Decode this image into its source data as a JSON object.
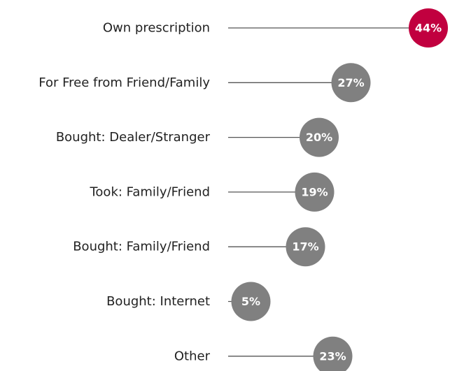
{
  "chart_data": {
    "type": "lollipop",
    "categories": [
      "Own prescription",
      "For Free from Friend/Family",
      "Bought: Dealer/Stranger",
      "Took: Family/Friend",
      "Bought: Family/Friend",
      "Bought: Internet",
      "Other"
    ],
    "values": [
      44,
      27,
      20,
      19,
      17,
      5,
      23
    ],
    "value_labels": [
      "44%",
      "27%",
      "20%",
      "19%",
      "17%",
      "5%",
      "23%"
    ],
    "colors": [
      "#c1003f",
      "#808080",
      "#808080",
      "#808080",
      "#808080",
      "#808080",
      "#808080"
    ]
  }
}
